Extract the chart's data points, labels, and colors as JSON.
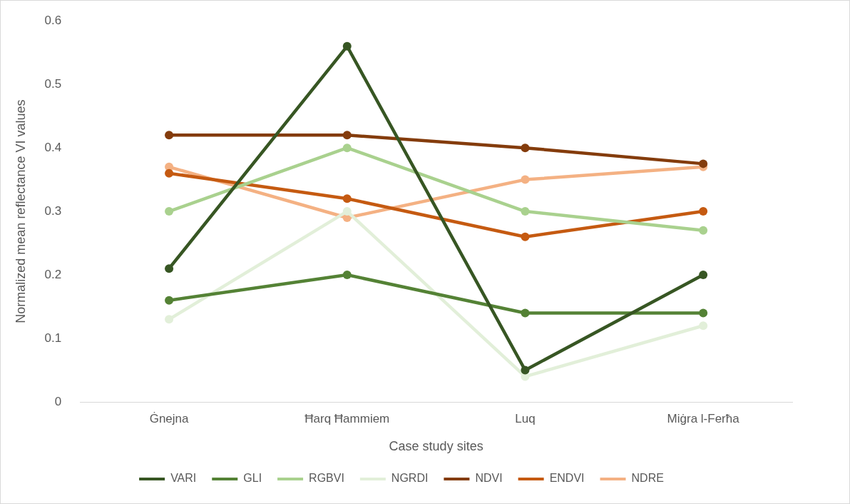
{
  "chart_data": {
    "type": "line",
    "xlabel": "Case study sites",
    "ylabel": "Normalized mean reflectance VI values",
    "categories": [
      "Ġnejna",
      "Ħarq Ħammiem",
      "Luq",
      "Miġra l-Ferħa"
    ],
    "series": [
      {
        "name": "VARI",
        "color": "#375623",
        "values": [
          0.21,
          0.56,
          0.05,
          0.2
        ]
      },
      {
        "name": "GLI",
        "color": "#548235",
        "values": [
          0.16,
          0.2,
          0.14,
          0.14
        ]
      },
      {
        "name": "RGBVI",
        "color": "#a9d18e",
        "values": [
          0.3,
          0.4,
          0.3,
          0.27
        ]
      },
      {
        "name": "NGRDI",
        "color": "#e2efd9",
        "values": [
          0.13,
          0.3,
          0.04,
          0.12
        ]
      },
      {
        "name": "NDVI",
        "color": "#843c0c",
        "values": [
          0.42,
          0.42,
          0.4,
          0.375
        ]
      },
      {
        "name": "ENDVI",
        "color": "#c55a11",
        "values": [
          0.36,
          0.32,
          0.26,
          0.3
        ]
      },
      {
        "name": "NDRE",
        "color": "#f4b183",
        "values": [
          0.37,
          0.29,
          0.35,
          0.37
        ]
      }
    ],
    "ylim": [
      0,
      0.6
    ],
    "yticks": [
      0,
      0.1,
      0.2,
      0.3,
      0.4,
      0.5,
      0.6
    ],
    "grid": false,
    "legend": "bottom",
    "marker": "circle",
    "line_style": "solid"
  }
}
